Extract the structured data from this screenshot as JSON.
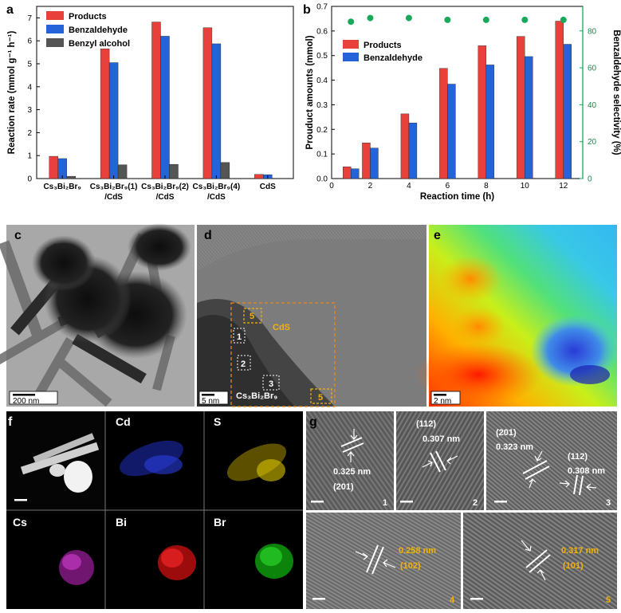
{
  "panels": {
    "a": "a",
    "b": "b",
    "c": "c",
    "d": "d",
    "e": "e",
    "f": "f",
    "g": "g"
  },
  "chart_data": [
    {
      "type": "bar",
      "ylabel": "Reaction rate (mmol g⁻¹ h⁻¹)",
      "ylim": [
        0,
        7.5
      ],
      "yticks": [
        0,
        1,
        2,
        3,
        4,
        5,
        6,
        7
      ],
      "categories": [
        [
          "Cs₃Bi₂Br₉"
        ],
        [
          "Cs₃Bi₂Br₉(1)",
          "/CdS"
        ],
        [
          "Cs₃Bi₂Br₉(2)",
          "/CdS"
        ],
        [
          "Cs₃Bi₂Br₉(4)",
          "/CdS"
        ],
        [
          "CdS"
        ]
      ],
      "series": [
        {
          "name": "Products",
          "color": "#e8413c",
          "values": [
            0.97,
            5.65,
            6.82,
            6.57,
            0.18
          ]
        },
        {
          "name": "Benzaldehyde",
          "color": "#2563d9",
          "values": [
            0.87,
            5.05,
            6.2,
            5.87,
            0.17
          ]
        },
        {
          "name": "Benzyl alcohol",
          "color": "#555555",
          "values": [
            0.1,
            0.6,
            0.62,
            0.7,
            0.0
          ]
        }
      ],
      "legend": "top-left"
    },
    {
      "type": "bar",
      "xlabel": "Reaction time (h)",
      "ylabel": "Prouduct amounts (mmol)",
      "y2label": "Benzaldehyde selectivity (%)",
      "xlim": [
        0,
        13
      ],
      "xticks": [
        0,
        2,
        4,
        6,
        8,
        10,
        12
      ],
      "ylim": [
        0,
        0.7
      ],
      "yticks": [
        "0.0",
        "0.1",
        "0.2",
        "0.3",
        "0.4",
        "0.5",
        "0.6",
        "0.7"
      ],
      "y2lim": [
        0,
        93.3
      ],
      "y2ticks": [
        0,
        20,
        40,
        60,
        80
      ],
      "x": [
        1,
        2,
        4,
        6,
        8,
        10,
        12
      ],
      "series": [
        {
          "name": "Products",
          "color": "#e8413c",
          "values": [
            0.048,
            0.145,
            0.263,
            0.448,
            0.54,
            0.578,
            0.64
          ]
        },
        {
          "name": "Benzaldehyde",
          "color": "#2563d9",
          "values": [
            0.04,
            0.124,
            0.226,
            0.384,
            0.462,
            0.496,
            0.546
          ]
        },
        {
          "name": "Benzaldehyde selectivity",
          "color": "#1aa85a",
          "type": "scatter",
          "axis": "right",
          "values": [
            85,
            87,
            87,
            86,
            86,
            86,
            86
          ]
        }
      ],
      "legend": "upper-left"
    }
  ],
  "images": {
    "c": {
      "scale": "200 nm"
    },
    "d": {
      "scale": "5 nm",
      "cds": "CdS",
      "cbb": "Cs₃Bi₂Br₉",
      "boxes": [
        "1",
        "2",
        "3",
        "4",
        "5"
      ]
    },
    "e": {
      "scale": "2 nm"
    },
    "f": {
      "elements": [
        "Cd",
        "S",
        "Cs",
        "Bi",
        "Br"
      ],
      "colors": {
        "Cd": "#1f2fbf",
        "S": "#c8b400",
        "Cs": "#b020b0",
        "Bi": "#e01818",
        "Br": "#10c010"
      }
    },
    "g": {
      "g1": {
        "d": "0.325 nm",
        "hkl": "(201)",
        "n": "1"
      },
      "g2": {
        "d": "0.307 nm",
        "hkl": "(112)",
        "n": "2"
      },
      "g3": {
        "d1": "0.323 nm",
        "h1": "(201)",
        "d2": "0.308 nm",
        "h2": "(112)",
        "n": "3"
      },
      "g4": {
        "d": "0.258 nm",
        "hkl": "(102)",
        "n": "4"
      },
      "g5": {
        "d": "0.317 nm",
        "hkl": "(101)",
        "n": "5"
      }
    }
  }
}
